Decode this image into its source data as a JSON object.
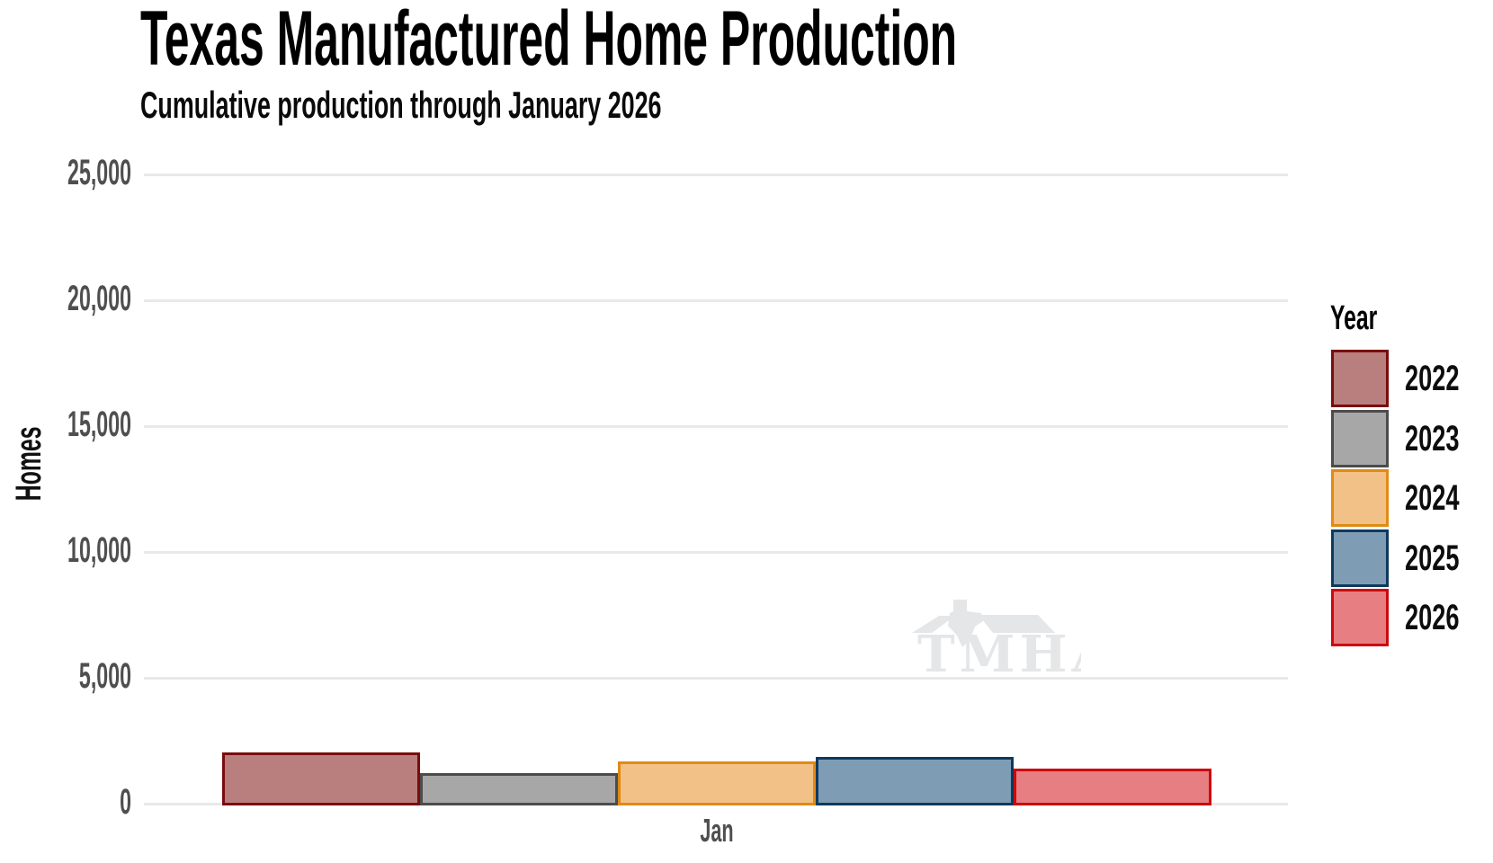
{
  "title": "Texas Manufactured Home Production",
  "subtitle": "Cumulative production through January 2026",
  "watermark": {
    "text": "TMHA",
    "color": "#e4e6e8"
  },
  "axes": {
    "y_axis_label": "Homes",
    "x_tick_label": "Jan",
    "y_tick_labels": [
      "25,000",
      "20,000",
      "15,000",
      "10,000",
      "5,000",
      "0"
    ]
  },
  "legend": {
    "title": "Year",
    "position": "right",
    "items": [
      "2022",
      "2023",
      "2024",
      "2025",
      "2026"
    ]
  },
  "chart_data": {
    "type": "bar",
    "title": "Texas Manufactured Home Production",
    "subtitle": "Cumulative production through January 2026",
    "categories": [
      "Jan"
    ],
    "xlabel": "",
    "ylabel": "Homes",
    "ylim": [
      0,
      25000
    ],
    "y_ticks": [
      {
        "value": 25000,
        "label": "25,000"
      },
      {
        "value": 20000,
        "label": "20,000"
      },
      {
        "value": 15000,
        "label": "15,000"
      },
      {
        "value": 10000,
        "label": "10,000"
      },
      {
        "value": 5000,
        "label": "5,000"
      },
      {
        "value": 0,
        "label": "0"
      }
    ],
    "grid": true,
    "legend_title": "Year",
    "legend_position": "right",
    "series": [
      {
        "name": "2022",
        "values": [
          2100
        ],
        "fill": "#b97f7e",
        "stroke": "#7a0c0c"
      },
      {
        "name": "2023",
        "values": [
          1280
        ],
        "fill": "#a7a7a7",
        "stroke": "#4c4c4c"
      },
      {
        "name": "2024",
        "values": [
          1740
        ],
        "fill": "#f2c187",
        "stroke": "#e18a14"
      },
      {
        "name": "2025",
        "values": [
          1920
        ],
        "fill": "#7f9cb5",
        "stroke": "#0e3a5c"
      },
      {
        "name": "2026",
        "values": [
          1470
        ],
        "fill": "#e77e81",
        "stroke": "#cc0a0d"
      }
    ]
  }
}
